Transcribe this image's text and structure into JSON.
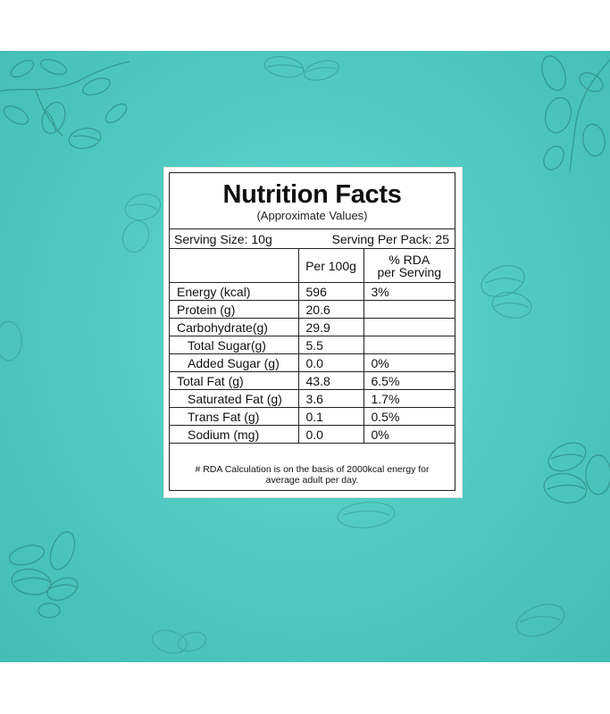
{
  "label": {
    "title": "Nutrition Facts",
    "subtitle": "(Approximate Values)",
    "serving_size": "Serving Size: 10g",
    "serving_per_pack": "Serving Per Pack: 25",
    "columns": {
      "per100g": "Per 100g",
      "rda_line1": "% RDA",
      "rda_line2": "per Serving"
    },
    "rows": [
      {
        "name": "Energy (kcal)",
        "per100g": "596",
        "rda": "3%"
      },
      {
        "name": "Protein (g)",
        "per100g": "20.6",
        "rda": ""
      },
      {
        "name": "Carbohydrate(g)",
        "per100g": "29.9",
        "rda": ""
      },
      {
        "name": "Total Sugar(g)",
        "per100g": "5.5",
        "rda": ""
      },
      {
        "name": "Added Sugar (g)",
        "per100g": "0.0",
        "rda": "0%"
      },
      {
        "name": "Total Fat (g)",
        "per100g": "43.8",
        "rda": "6.5%"
      },
      {
        "name": "Saturated Fat (g)",
        "per100g": "3.6",
        "rda": "1.7%"
      },
      {
        "name": "Trans Fat (g)",
        "per100g": "0.1",
        "rda": "0.5%"
      },
      {
        "name": "Sodium (mg)",
        "per100g": "0.0",
        "rda": "0%"
      }
    ],
    "footnote_line1": "# RDA Calculation is on the basis of 2000kcal energy for",
    "footnote_line2": "average adult per day."
  },
  "colors": {
    "background": "#4fc9c0",
    "illustration_line": "#2f8f88"
  },
  "decorations": [
    "almond-branch-icon",
    "almond-icon",
    "leaf-icon"
  ]
}
